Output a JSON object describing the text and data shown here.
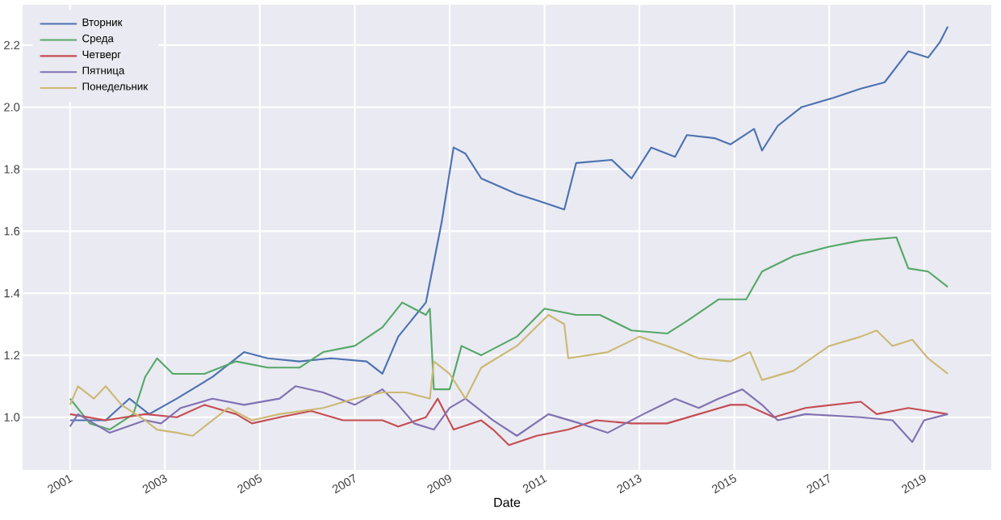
{
  "chart_data": {
    "type": "line",
    "xlabel": "Date",
    "xlim": [
      "2000-01",
      "2020-06"
    ],
    "ylim": [
      0.83,
      2.33
    ],
    "xticks": [
      "2001",
      "2003",
      "2005",
      "2007",
      "2009",
      "2011",
      "2013",
      "2015",
      "2017",
      "2019"
    ],
    "yticks": [
      {
        "value": 1,
        "label": "1.0"
      },
      {
        "value": 1.2,
        "label": "1.2"
      },
      {
        "value": 1.4,
        "label": "1.4"
      },
      {
        "value": 1.6,
        "label": "1.6"
      },
      {
        "value": 1.8,
        "label": "1.8"
      },
      {
        "value": 2,
        "label": "2.0"
      },
      {
        "value": 2.2,
        "label": "2.2"
      }
    ],
    "grid": true,
    "legend": "top left",
    "line_style": "solid",
    "series": [
      {
        "name": "Вторник",
        "color": "#4c72b0",
        "x": [
          "2001-01",
          "2001-10",
          "2002-04",
          "2002-09",
          "2003-04",
          "2004-01",
          "2004-09",
          "2005-03",
          "2005-11",
          "2006-07",
          "2007-04",
          "2007-08",
          "2007-12",
          "2008-07",
          "2008-09",
          "2008-11",
          "2009-02",
          "2009-05",
          "2009-09",
          "2010-06",
          "2010-11",
          "2011-06",
          "2011-09",
          "2012-06",
          "2012-11",
          "2013-04",
          "2013-10",
          "2014-01",
          "2014-08",
          "2014-12",
          "2015-06",
          "2015-08",
          "2015-12",
          "2016-06",
          "2017-02",
          "2017-09",
          "2018-03",
          "2018-09",
          "2019-02",
          "2019-05",
          "2019-07"
        ],
        "values": [
          0.99,
          0.99,
          1.06,
          1.01,
          1.06,
          1.13,
          1.21,
          1.19,
          1.18,
          1.19,
          1.18,
          1.14,
          1.26,
          1.37,
          1.5,
          1.63,
          1.87,
          1.85,
          1.77,
          1.72,
          1.7,
          1.67,
          1.82,
          1.83,
          1.77,
          1.87,
          1.84,
          1.91,
          1.9,
          1.88,
          1.93,
          1.86,
          1.94,
          2.0,
          2.03,
          2.06,
          2.08,
          2.18,
          2.16,
          2.21,
          2.26
        ]
      },
      {
        "name": "Среда",
        "color": "#55a868",
        "x": [
          "2001-01",
          "2001-06",
          "2001-11",
          "2002-05",
          "2002-08",
          "2002-11",
          "2003-03",
          "2003-11",
          "2004-07",
          "2005-03",
          "2005-11",
          "2006-05",
          "2007-01",
          "2007-08",
          "2008-01",
          "2008-07",
          "2008-08",
          "2008-09",
          "2009-01",
          "2009-04",
          "2009-09",
          "2010-06",
          "2011-01",
          "2011-09",
          "2012-03",
          "2012-11",
          "2013-08",
          "2014-01",
          "2014-09",
          "2015-04",
          "2015-08",
          "2016-04",
          "2017-01",
          "2017-09",
          "2018-06",
          "2018-09",
          "2019-02",
          "2019-07"
        ],
        "values": [
          1.06,
          0.98,
          0.96,
          1.01,
          1.13,
          1.19,
          1.14,
          1.14,
          1.18,
          1.16,
          1.16,
          1.21,
          1.23,
          1.29,
          1.37,
          1.33,
          1.35,
          1.09,
          1.09,
          1.23,
          1.2,
          1.26,
          1.35,
          1.33,
          1.33,
          1.28,
          1.27,
          1.31,
          1.38,
          1.38,
          1.47,
          1.52,
          1.55,
          1.57,
          1.58,
          1.48,
          1.47,
          1.42
        ]
      },
      {
        "name": "Четверг",
        "color": "#c44e52",
        "x": [
          "2001-01",
          "2001-10",
          "2002-08",
          "2003-04",
          "2003-11",
          "2004-07",
          "2004-11",
          "2005-06",
          "2006-02",
          "2006-10",
          "2007-08",
          "2007-12",
          "2008-07",
          "2008-10",
          "2009-02",
          "2009-09",
          "2009-12",
          "2010-04",
          "2010-11",
          "2011-07",
          "2012-02",
          "2012-11",
          "2013-08",
          "2014-04",
          "2014-12",
          "2015-04",
          "2015-11",
          "2016-07",
          "2017-09",
          "2018-01",
          "2018-09",
          "2019-07"
        ],
        "values": [
          1.01,
          0.99,
          1.01,
          1.0,
          1.04,
          1.01,
          0.98,
          1.0,
          1.02,
          0.99,
          0.99,
          0.97,
          1.0,
          1.06,
          0.96,
          0.99,
          0.96,
          0.91,
          0.94,
          0.96,
          0.99,
          0.98,
          0.98,
          1.01,
          1.04,
          1.04,
          1.0,
          1.03,
          1.05,
          1.01,
          1.03,
          1.01
        ]
      },
      {
        "name": "Пятница",
        "color": "#8172b2",
        "x": [
          "2001-01",
          "2001-03",
          "2001-11",
          "2002-08",
          "2002-12",
          "2003-05",
          "2004-01",
          "2004-09",
          "2005-06",
          "2005-10",
          "2006-05",
          "2007-01",
          "2007-08",
          "2007-12",
          "2008-04",
          "2008-09",
          "2009-01",
          "2009-05",
          "2009-12",
          "2010-06",
          "2011-02",
          "2011-10",
          "2012-05",
          "2013-02",
          "2013-10",
          "2014-04",
          "2014-09",
          "2015-03",
          "2015-08",
          "2015-12",
          "2016-07",
          "2017-09",
          "2018-05",
          "2018-10",
          "2019-01",
          "2019-07"
        ],
        "values": [
          0.97,
          1.01,
          0.95,
          0.99,
          0.98,
          1.03,
          1.06,
          1.04,
          1.06,
          1.1,
          1.08,
          1.04,
          1.09,
          1.04,
          0.98,
          0.96,
          1.03,
          1.06,
          0.99,
          0.94,
          1.01,
          0.98,
          0.95,
          1.01,
          1.06,
          1.03,
          1.06,
          1.09,
          1.04,
          0.99,
          1.01,
          1.0,
          0.99,
          0.92,
          0.99,
          1.01
        ]
      },
      {
        "name": "Понедельник",
        "color": "#ccb974",
        "x": [
          "2001-01",
          "2001-03",
          "2001-07",
          "2001-10",
          "2002-02",
          "2002-08",
          "2002-11",
          "2003-04",
          "2003-08",
          "2004-01",
          "2004-05",
          "2004-11",
          "2005-06",
          "2006-05",
          "2007-01",
          "2007-08",
          "2008-02",
          "2008-08",
          "2008-09",
          "2009-01",
          "2009-05",
          "2009-09",
          "2010-06",
          "2011-02",
          "2011-06",
          "2011-07",
          "2012-05",
          "2013-01",
          "2013-08",
          "2014-04",
          "2014-12",
          "2015-05",
          "2015-08",
          "2016-04",
          "2017-01",
          "2017-09",
          "2018-01",
          "2018-05",
          "2018-10",
          "2019-02",
          "2019-07"
        ],
        "values": [
          1.04,
          1.1,
          1.06,
          1.1,
          1.04,
          0.99,
          0.96,
          0.95,
          0.94,
          0.99,
          1.03,
          0.99,
          1.01,
          1.03,
          1.06,
          1.08,
          1.08,
          1.06,
          1.18,
          1.14,
          1.06,
          1.16,
          1.23,
          1.33,
          1.3,
          1.19,
          1.21,
          1.26,
          1.23,
          1.19,
          1.18,
          1.21,
          1.12,
          1.15,
          1.23,
          1.26,
          1.28,
          1.23,
          1.25,
          1.19,
          1.14
        ]
      }
    ]
  }
}
